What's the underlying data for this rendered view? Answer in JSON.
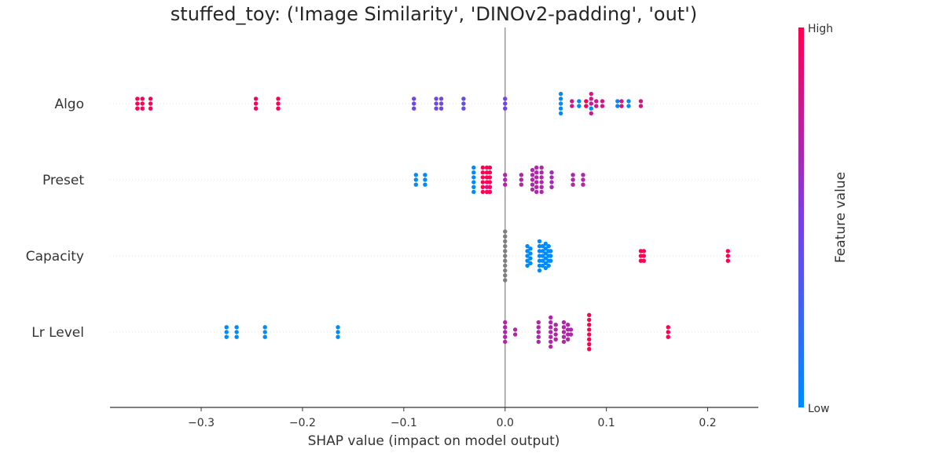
{
  "chart_data": {
    "type": "scatter",
    "title": "stuffed_toy: ('Image Similarity', 'DINOv2-padding', 'out')",
    "xlabel": "SHAP value (impact on model output)",
    "xlim": [
      -0.39,
      0.25
    ],
    "x_ticks": [
      -0.3,
      -0.2,
      -0.1,
      0.0,
      0.1,
      0.2
    ],
    "x_tick_labels": [
      "−0.3",
      "−0.2",
      "−0.1",
      "0.0",
      "0.1",
      "0.2"
    ],
    "features": [
      "Algo",
      "Preset",
      "Capacity",
      "Lr Level"
    ],
    "colorbar": {
      "label": "Feature value",
      "high_label": "High",
      "low_label": "Low",
      "low_color": "#008bfb",
      "mid_color": "#7b3fe0",
      "high_color": "#ff0052"
    },
    "missing_color": "#7f7f7f",
    "zero_line_color": "#999999",
    "series": [
      {
        "feature": "Algo",
        "points": [
          {
            "x": -0.363,
            "v": 1.0
          },
          {
            "x": -0.358,
            "v": 1.0
          },
          {
            "x": -0.35,
            "v": 1.0
          },
          {
            "x": -0.363,
            "v": 1.0
          },
          {
            "x": -0.358,
            "v": 1.0
          },
          {
            "x": -0.35,
            "v": 1.0
          },
          {
            "x": -0.363,
            "v": 1.0
          },
          {
            "x": -0.358,
            "v": 1.0
          },
          {
            "x": -0.35,
            "v": 1.0
          },
          {
            "x": -0.246,
            "v": 1.0
          },
          {
            "x": -0.224,
            "v": 1.0
          },
          {
            "x": -0.246,
            "v": 1.0
          },
          {
            "x": -0.224,
            "v": 1.0
          },
          {
            "x": -0.246,
            "v": 1.0
          },
          {
            "x": -0.224,
            "v": 1.0
          },
          {
            "x": -0.09,
            "v": 0.45
          },
          {
            "x": -0.09,
            "v": 0.45
          },
          {
            "x": -0.09,
            "v": 0.45
          },
          {
            "x": -0.068,
            "v": 0.45
          },
          {
            "x": -0.063,
            "v": 0.45
          },
          {
            "x": -0.068,
            "v": 0.45
          },
          {
            "x": -0.063,
            "v": 0.45
          },
          {
            "x": -0.068,
            "v": 0.45
          },
          {
            "x": -0.063,
            "v": 0.45
          },
          {
            "x": -0.041,
            "v": 0.4
          },
          {
            "x": -0.041,
            "v": 0.4
          },
          {
            "x": -0.041,
            "v": 0.4
          },
          {
            "x": 0.0,
            "v": 0.45
          },
          {
            "x": 0.0,
            "v": 0.45
          },
          {
            "x": 0.0,
            "v": 0.45
          },
          {
            "x": 0.055,
            "v": 0.0
          },
          {
            "x": 0.055,
            "v": 0.0
          },
          {
            "x": 0.055,
            "v": 0.0
          },
          {
            "x": 0.055,
            "v": 0.0
          },
          {
            "x": 0.055,
            "v": 0.0
          },
          {
            "x": 0.066,
            "v": 0.8
          },
          {
            "x": 0.066,
            "v": 0.8
          },
          {
            "x": 0.073,
            "v": 0.0
          },
          {
            "x": 0.073,
            "v": 0.0
          },
          {
            "x": 0.08,
            "v": 1.0
          },
          {
            "x": 0.08,
            "v": 1.0
          },
          {
            "x": 0.085,
            "v": 0.8
          },
          {
            "x": 0.085,
            "v": 0.8
          },
          {
            "x": 0.085,
            "v": 0.8
          },
          {
            "x": 0.085,
            "v": 0.0
          },
          {
            "x": 0.085,
            "v": 0.8
          },
          {
            "x": 0.09,
            "v": 0.8
          },
          {
            "x": 0.09,
            "v": 0.8
          },
          {
            "x": 0.096,
            "v": 0.8
          },
          {
            "x": 0.096,
            "v": 0.8
          },
          {
            "x": 0.111,
            "v": 0.0
          },
          {
            "x": 0.111,
            "v": 0.0
          },
          {
            "x": 0.115,
            "v": 0.85
          },
          {
            "x": 0.115,
            "v": 0.85
          },
          {
            "x": 0.122,
            "v": 0.0
          },
          {
            "x": 0.122,
            "v": 0.0
          },
          {
            "x": 0.134,
            "v": 0.85
          },
          {
            "x": 0.134,
            "v": 0.85
          }
        ]
      },
      {
        "feature": "Preset",
        "points": [
          {
            "x": -0.088,
            "v": 0.0
          },
          {
            "x": -0.088,
            "v": 0.0
          },
          {
            "x": -0.088,
            "v": 0.0
          },
          {
            "x": -0.079,
            "v": 0.0
          },
          {
            "x": -0.079,
            "v": 0.0
          },
          {
            "x": -0.079,
            "v": 0.0
          },
          {
            "x": -0.031,
            "v": 0.0
          },
          {
            "x": -0.031,
            "v": 0.0
          },
          {
            "x": -0.031,
            "v": 0.0
          },
          {
            "x": -0.031,
            "v": 0.0
          },
          {
            "x": -0.031,
            "v": 0.0
          },
          {
            "x": -0.031,
            "v": 0.0
          },
          {
            "x": -0.022,
            "v": 1.0
          },
          {
            "x": -0.022,
            "v": 1.0
          },
          {
            "x": -0.022,
            "v": 1.0
          },
          {
            "x": -0.022,
            "v": 1.0
          },
          {
            "x": -0.022,
            "v": 1.0
          },
          {
            "x": -0.022,
            "v": 1.0
          },
          {
            "x": -0.018,
            "v": 1.0
          },
          {
            "x": -0.018,
            "v": 1.0
          },
          {
            "x": -0.018,
            "v": 1.0
          },
          {
            "x": -0.018,
            "v": 1.0
          },
          {
            "x": -0.018,
            "v": 0.8
          },
          {
            "x": -0.018,
            "v": 1.0
          },
          {
            "x": -0.015,
            "v": 1.0
          },
          {
            "x": -0.015,
            "v": 1.0
          },
          {
            "x": -0.015,
            "v": 1.0
          },
          {
            "x": -0.015,
            "v": 1.0
          },
          {
            "x": -0.015,
            "v": 1.0
          },
          {
            "x": -0.015,
            "v": 1.0
          },
          {
            "x": 0.0,
            "v": 0.7
          },
          {
            "x": 0.0,
            "v": 0.7
          },
          {
            "x": 0.0,
            "v": 0.7
          },
          {
            "x": 0.016,
            "v": 0.7
          },
          {
            "x": 0.016,
            "v": 0.7
          },
          {
            "x": 0.016,
            "v": 0.7
          },
          {
            "x": 0.027,
            "v": 0.7
          },
          {
            "x": 0.027,
            "v": 0.7
          },
          {
            "x": 0.027,
            "v": 0.7
          },
          {
            "x": 0.027,
            "v": 0.7
          },
          {
            "x": 0.027,
            "v": 0.7
          },
          {
            "x": 0.031,
            "v": 0.7
          },
          {
            "x": 0.031,
            "v": 0.7
          },
          {
            "x": 0.031,
            "v": 0.7
          },
          {
            "x": 0.031,
            "v": 0.7
          },
          {
            "x": 0.031,
            "v": 0.7
          },
          {
            "x": 0.031,
            "v": 0.7
          },
          {
            "x": 0.036,
            "v": 0.7
          },
          {
            "x": 0.036,
            "v": 0.7
          },
          {
            "x": 0.036,
            "v": 0.7
          },
          {
            "x": 0.036,
            "v": 0.7
          },
          {
            "x": 0.036,
            "v": 0.7
          },
          {
            "x": 0.036,
            "v": 0.7
          },
          {
            "x": 0.046,
            "v": 0.65
          },
          {
            "x": 0.046,
            "v": 0.65
          },
          {
            "x": 0.046,
            "v": 0.65
          },
          {
            "x": 0.046,
            "v": 0.65
          },
          {
            "x": 0.067,
            "v": 0.7
          },
          {
            "x": 0.067,
            "v": 0.7
          },
          {
            "x": 0.067,
            "v": 0.7
          },
          {
            "x": 0.077,
            "v": 0.7
          },
          {
            "x": 0.077,
            "v": 0.7
          },
          {
            "x": 0.077,
            "v": 0.7
          }
        ]
      },
      {
        "feature": "Capacity",
        "points": [
          {
            "x": 0.0,
            "v": null
          },
          {
            "x": 0.0,
            "v": null
          },
          {
            "x": 0.0,
            "v": null
          },
          {
            "x": 0.0,
            "v": null
          },
          {
            "x": 0.0,
            "v": null
          },
          {
            "x": 0.0,
            "v": null
          },
          {
            "x": 0.0,
            "v": null
          },
          {
            "x": 0.0,
            "v": null
          },
          {
            "x": 0.0,
            "v": null
          },
          {
            "x": 0.0,
            "v": null
          },
          {
            "x": 0.0,
            "v": null
          },
          {
            "x": 0.022,
            "v": 0.0
          },
          {
            "x": 0.022,
            "v": 0.0
          },
          {
            "x": 0.022,
            "v": 0.0
          },
          {
            "x": 0.022,
            "v": 0.0
          },
          {
            "x": 0.022,
            "v": 0.0
          },
          {
            "x": 0.025,
            "v": 0.0
          },
          {
            "x": 0.025,
            "v": 0.0
          },
          {
            "x": 0.025,
            "v": 0.0
          },
          {
            "x": 0.025,
            "v": 0.0
          },
          {
            "x": 0.034,
            "v": 0.0
          },
          {
            "x": 0.034,
            "v": 0.0
          },
          {
            "x": 0.034,
            "v": 0.0
          },
          {
            "x": 0.034,
            "v": 0.0
          },
          {
            "x": 0.034,
            "v": 0.0
          },
          {
            "x": 0.034,
            "v": 0.0
          },
          {
            "x": 0.034,
            "v": 0.0
          },
          {
            "x": 0.037,
            "v": 0.0
          },
          {
            "x": 0.037,
            "v": 0.0
          },
          {
            "x": 0.037,
            "v": 0.0
          },
          {
            "x": 0.037,
            "v": 0.0
          },
          {
            "x": 0.037,
            "v": 0.0
          },
          {
            "x": 0.04,
            "v": 0.0
          },
          {
            "x": 0.04,
            "v": 0.0
          },
          {
            "x": 0.04,
            "v": 0.0
          },
          {
            "x": 0.04,
            "v": 0.0
          },
          {
            "x": 0.04,
            "v": 0.0
          },
          {
            "x": 0.04,
            "v": 0.0
          },
          {
            "x": 0.043,
            "v": 0.0
          },
          {
            "x": 0.043,
            "v": 0.0
          },
          {
            "x": 0.043,
            "v": 0.0
          },
          {
            "x": 0.043,
            "v": 0.0
          },
          {
            "x": 0.043,
            "v": 0.0
          },
          {
            "x": 0.045,
            "v": 0.0
          },
          {
            "x": 0.045,
            "v": 0.0
          },
          {
            "x": 0.045,
            "v": 0.0
          },
          {
            "x": 0.134,
            "v": 1.0
          },
          {
            "x": 0.134,
            "v": 1.0
          },
          {
            "x": 0.134,
            "v": 1.0
          },
          {
            "x": 0.137,
            "v": 1.0
          },
          {
            "x": 0.137,
            "v": 1.0
          },
          {
            "x": 0.137,
            "v": 1.0
          },
          {
            "x": 0.22,
            "v": 1.0
          },
          {
            "x": 0.22,
            "v": 1.0
          },
          {
            "x": 0.22,
            "v": 1.0
          }
        ]
      },
      {
        "feature": "Lr Level",
        "points": [
          {
            "x": -0.275,
            "v": 0.0
          },
          {
            "x": -0.275,
            "v": 0.0
          },
          {
            "x": -0.275,
            "v": 0.0
          },
          {
            "x": -0.265,
            "v": 0.0
          },
          {
            "x": -0.265,
            "v": 0.0
          },
          {
            "x": -0.265,
            "v": 0.0
          },
          {
            "x": -0.237,
            "v": 0.0
          },
          {
            "x": -0.237,
            "v": 0.0
          },
          {
            "x": -0.237,
            "v": 0.0
          },
          {
            "x": -0.165,
            "v": 0.0
          },
          {
            "x": -0.165,
            "v": 0.0
          },
          {
            "x": -0.165,
            "v": 0.0
          },
          {
            "x": 0.0,
            "v": 0.7
          },
          {
            "x": 0.0,
            "v": 0.7
          },
          {
            "x": 0.0,
            "v": 0.7
          },
          {
            "x": 0.0,
            "v": 0.7
          },
          {
            "x": 0.0,
            "v": 0.7
          },
          {
            "x": 0.01,
            "v": 0.7
          },
          {
            "x": 0.01,
            "v": 0.7
          },
          {
            "x": 0.033,
            "v": 0.7
          },
          {
            "x": 0.033,
            "v": 0.7
          },
          {
            "x": 0.033,
            "v": 0.7
          },
          {
            "x": 0.033,
            "v": 0.7
          },
          {
            "x": 0.033,
            "v": 0.7
          },
          {
            "x": 0.045,
            "v": 0.7
          },
          {
            "x": 0.045,
            "v": 0.7
          },
          {
            "x": 0.045,
            "v": 0.7
          },
          {
            "x": 0.045,
            "v": 0.7
          },
          {
            "x": 0.045,
            "v": 0.7
          },
          {
            "x": 0.045,
            "v": 0.7
          },
          {
            "x": 0.045,
            "v": 0.7
          },
          {
            "x": 0.05,
            "v": 0.7
          },
          {
            "x": 0.05,
            "v": 0.7
          },
          {
            "x": 0.05,
            "v": 0.7
          },
          {
            "x": 0.05,
            "v": 0.7
          },
          {
            "x": 0.058,
            "v": 0.7
          },
          {
            "x": 0.058,
            "v": 0.7
          },
          {
            "x": 0.058,
            "v": 0.7
          },
          {
            "x": 0.058,
            "v": 0.7
          },
          {
            "x": 0.058,
            "v": 0.7
          },
          {
            "x": 0.062,
            "v": 0.7
          },
          {
            "x": 0.062,
            "v": 0.7
          },
          {
            "x": 0.062,
            "v": 0.7
          },
          {
            "x": 0.062,
            "v": 0.7
          },
          {
            "x": 0.065,
            "v": 0.7
          },
          {
            "x": 0.065,
            "v": 0.7
          },
          {
            "x": 0.083,
            "v": 1.0
          },
          {
            "x": 0.083,
            "v": 1.0
          },
          {
            "x": 0.083,
            "v": 1.0
          },
          {
            "x": 0.083,
            "v": 1.0
          },
          {
            "x": 0.083,
            "v": 1.0
          },
          {
            "x": 0.083,
            "v": 1.0
          },
          {
            "x": 0.083,
            "v": 1.0
          },
          {
            "x": 0.083,
            "v": 1.0
          },
          {
            "x": 0.161,
            "v": 1.0
          },
          {
            "x": 0.161,
            "v": 1.0
          },
          {
            "x": 0.161,
            "v": 1.0
          }
        ]
      }
    ]
  }
}
